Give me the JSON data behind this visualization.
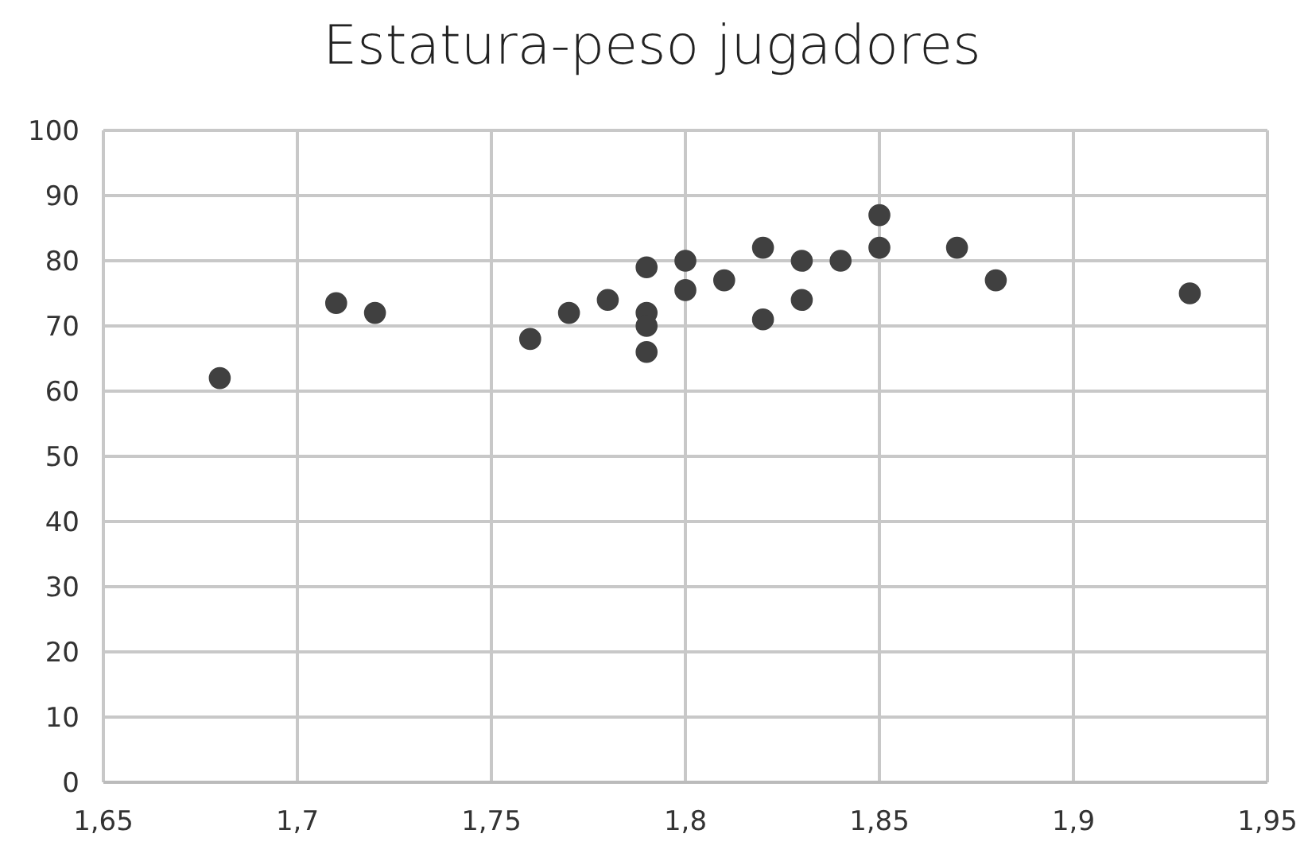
{
  "chart_data": {
    "type": "scatter",
    "title": "Estatura-peso jugadores",
    "x": [
      1.68,
      1.71,
      1.72,
      1.76,
      1.77,
      1.78,
      1.79,
      1.79,
      1.79,
      1.79,
      1.8,
      1.8,
      1.81,
      1.82,
      1.82,
      1.83,
      1.83,
      1.84,
      1.85,
      1.85,
      1.87,
      1.88,
      1.93
    ],
    "series": [
      {
        "color": "#404040",
        "values": [
          62,
          73.5,
          72,
          68,
          72,
          74,
          79,
          72,
          70,
          66,
          80,
          75.5,
          77,
          82,
          71,
          80,
          74,
          80,
          87,
          82,
          82,
          77,
          75
        ]
      }
    ],
    "xlim": [
      1.65,
      1.95
    ],
    "xticks": [
      {
        "value": 1.65,
        "label": "1,65"
      },
      {
        "value": 1.7,
        "label": "1,7"
      },
      {
        "value": 1.75,
        "label": "1,75"
      },
      {
        "value": 1.8,
        "label": "1,8"
      },
      {
        "value": 1.85,
        "label": "1,85"
      },
      {
        "value": 1.9,
        "label": "1,9"
      },
      {
        "value": 1.95,
        "label": "1,95"
      }
    ],
    "ylim": [
      0,
      100
    ],
    "yticks": [
      0,
      10,
      20,
      30,
      40,
      50,
      60,
      70,
      80,
      90,
      100
    ],
    "grid": true,
    "marker": "circle"
  }
}
